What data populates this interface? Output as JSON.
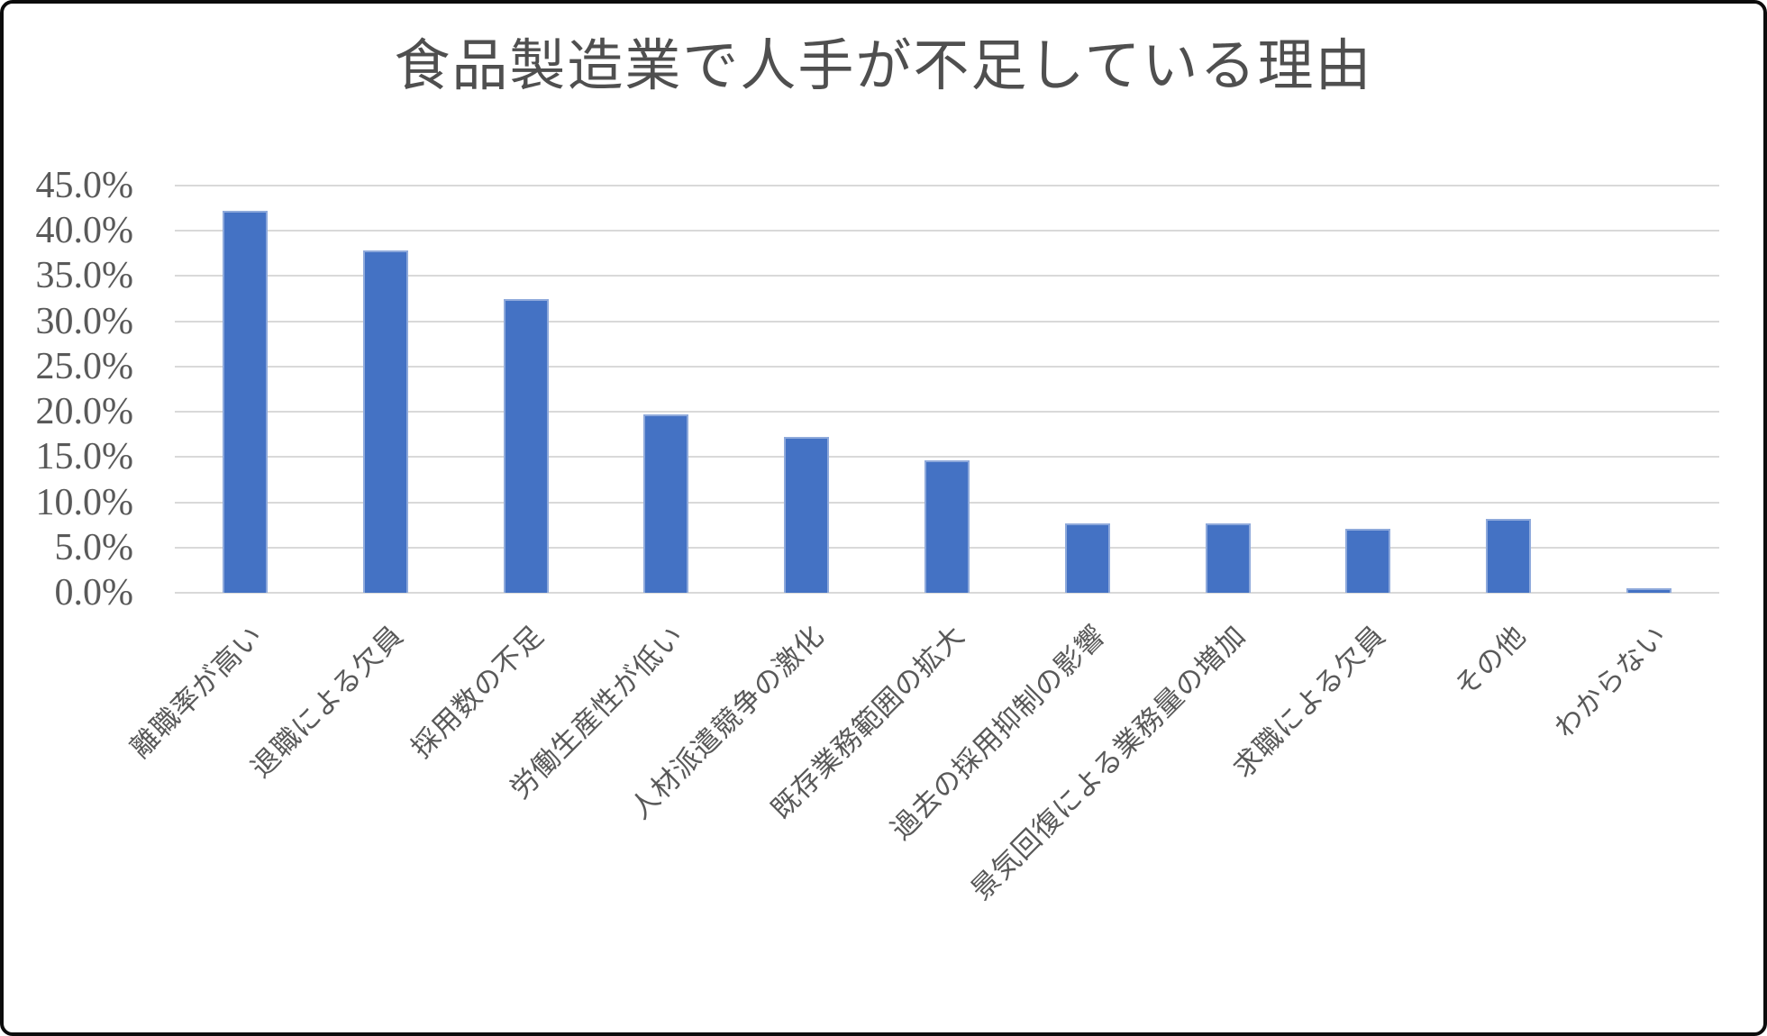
{
  "window": {
    "background": "#ffffff",
    "frame_border_color": "#0c0c0c"
  },
  "chart_data": {
    "type": "bar",
    "title": "食品製造業で人手が不足している理由",
    "categories": [
      "離職率が高い",
      "退職による欠員",
      "採用数の不足",
      "労働生産性が低い",
      "人材派遣競争の激化",
      "既存業務範囲の拡大",
      "過去の採用抑制の影響",
      "景気回復による業務量の増加",
      "求職による欠員",
      "その他",
      "わからない"
    ],
    "values": [
      42.2,
      37.8,
      32.5,
      19.7,
      17.2,
      14.6,
      7.7,
      7.7,
      7.1,
      8.2,
      0.5
    ],
    "value_unit": "%",
    "xlabel": "",
    "ylabel": "",
    "ylim": [
      0,
      45
    ],
    "ytick_step": 5,
    "ytick_labels": [
      "45.0%",
      "40.0%",
      "35.0%",
      "30.0%",
      "25.0%",
      "20.0%",
      "15.0%",
      "10.0%",
      "5.0%",
      "0.0%"
    ],
    "grid": true,
    "legend_position": "none",
    "bar_color": "#4472C4",
    "bar_border_color": "#8EA9DB",
    "gridline_color": "#D9D9D9",
    "axis_text_color": "#595959",
    "title_color": "#4F4F4F",
    "x_label_rotation_deg": 45
  }
}
